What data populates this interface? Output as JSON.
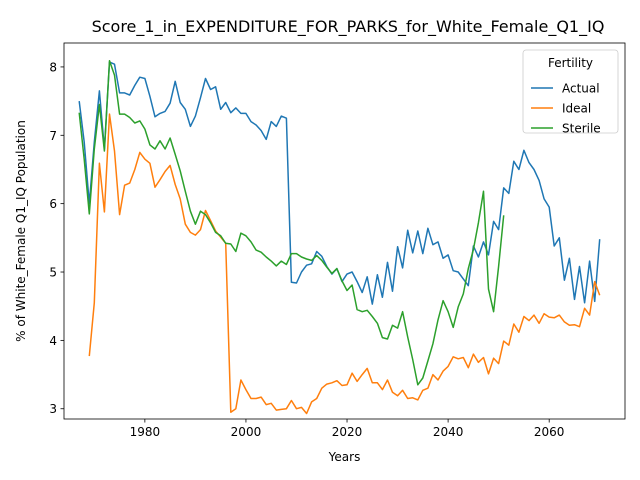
{
  "chart_data": {
    "type": "line",
    "title": "Score_1_in_EXPENDITURE_FOR_PARKS_for_White_Female_Q1_IQ",
    "xlabel": "Years",
    "ylabel": "% of White_Female Q1_IQ Population",
    "xlim": [
      1964,
      2075
    ],
    "ylim": [
      2.85,
      8.35
    ],
    "xticks": [
      1980,
      2000,
      2020,
      2040,
      2060
    ],
    "yticks": [
      3,
      4,
      5,
      6,
      7,
      8
    ],
    "grid": false,
    "legend": {
      "title": "Fertility",
      "position": "top-right"
    },
    "series": [
      {
        "name": "Actual",
        "color": "#1f77b4",
        "points": [
          [
            1967,
            7.5
          ],
          [
            1968,
            6.9
          ],
          [
            1969,
            6.0
          ],
          [
            1970,
            6.9
          ],
          [
            1971,
            7.65
          ],
          [
            1972,
            6.8
          ],
          [
            1973,
            8.07
          ],
          [
            1974,
            8.04
          ],
          [
            1975,
            7.62
          ],
          [
            1976,
            7.62
          ],
          [
            1977,
            7.59
          ],
          [
            1978,
            7.73
          ],
          [
            1979,
            7.85
          ],
          [
            1980,
            7.83
          ],
          [
            1981,
            7.57
          ],
          [
            1982,
            7.27
          ],
          [
            1983,
            7.32
          ],
          [
            1984,
            7.35
          ],
          [
            1985,
            7.47
          ],
          [
            1986,
            7.79
          ],
          [
            1987,
            7.48
          ],
          [
            1988,
            7.38
          ],
          [
            1989,
            7.13
          ],
          [
            1990,
            7.28
          ],
          [
            1991,
            7.55
          ],
          [
            1992,
            7.83
          ],
          [
            1993,
            7.67
          ],
          [
            1994,
            7.71
          ],
          [
            1995,
            7.38
          ],
          [
            1996,
            7.48
          ],
          [
            1997,
            7.33
          ],
          [
            1998,
            7.4
          ],
          [
            1999,
            7.32
          ],
          [
            2000,
            7.32
          ],
          [
            2001,
            7.2
          ],
          [
            2002,
            7.15
          ],
          [
            2003,
            7.07
          ],
          [
            2004,
            6.94
          ],
          [
            2005,
            7.2
          ],
          [
            2006,
            7.13
          ],
          [
            2007,
            7.28
          ],
          [
            2008,
            7.25
          ],
          [
            2009,
            4.85
          ],
          [
            2010,
            4.84
          ],
          [
            2011,
            5.0
          ],
          [
            2012,
            5.1
          ],
          [
            2013,
            5.12
          ],
          [
            2014,
            5.3
          ],
          [
            2015,
            5.23
          ],
          [
            2016,
            5.08
          ],
          [
            2017,
            4.97
          ],
          [
            2018,
            5.05
          ],
          [
            2019,
            4.86
          ],
          [
            2020,
            4.97
          ],
          [
            2021,
            5.0
          ],
          [
            2022,
            4.86
          ],
          [
            2023,
            4.7
          ],
          [
            2024,
            4.93
          ],
          [
            2025,
            4.53
          ],
          [
            2026,
            4.96
          ],
          [
            2027,
            4.63
          ],
          [
            2028,
            5.14
          ],
          [
            2029,
            4.72
          ],
          [
            2030,
            5.37
          ],
          [
            2031,
            5.06
          ],
          [
            2032,
            5.61
          ],
          [
            2033,
            5.28
          ],
          [
            2034,
            5.6
          ],
          [
            2035,
            5.27
          ],
          [
            2036,
            5.64
          ],
          [
            2037,
            5.4
          ],
          [
            2038,
            5.44
          ],
          [
            2039,
            5.2
          ],
          [
            2040,
            5.25
          ],
          [
            2041,
            5.02
          ],
          [
            2042,
            5.0
          ],
          [
            2043,
            4.9
          ],
          [
            2044,
            4.8
          ],
          [
            2045,
            5.38
          ],
          [
            2046,
            5.22
          ],
          [
            2047,
            5.44
          ],
          [
            2048,
            5.25
          ],
          [
            2049,
            5.74
          ],
          [
            2050,
            5.62
          ],
          [
            2051,
            6.23
          ],
          [
            2052,
            6.15
          ],
          [
            2053,
            6.62
          ],
          [
            2054,
            6.5
          ],
          [
            2055,
            6.78
          ],
          [
            2056,
            6.6
          ],
          [
            2057,
            6.5
          ],
          [
            2058,
            6.34
          ],
          [
            2059,
            6.07
          ],
          [
            2060,
            5.95
          ],
          [
            2061,
            5.38
          ],
          [
            2062,
            5.5
          ],
          [
            2063,
            4.88
          ],
          [
            2064,
            5.2
          ],
          [
            2065,
            4.6
          ],
          [
            2066,
            5.08
          ],
          [
            2067,
            4.55
          ],
          [
            2068,
            5.16
          ],
          [
            2069,
            4.57
          ],
          [
            2070,
            5.48
          ]
        ]
      },
      {
        "name": "Ideal",
        "color": "#ff7f0e",
        "points": [
          [
            1969,
            3.77
          ],
          [
            1970,
            4.55
          ],
          [
            1971,
            6.59
          ],
          [
            1972,
            5.88
          ],
          [
            1973,
            7.31
          ],
          [
            1974,
            6.77
          ],
          [
            1975,
            5.84
          ],
          [
            1976,
            6.27
          ],
          [
            1977,
            6.3
          ],
          [
            1978,
            6.5
          ],
          [
            1979,
            6.75
          ],
          [
            1980,
            6.65
          ],
          [
            1981,
            6.59
          ],
          [
            1982,
            6.24
          ],
          [
            1983,
            6.35
          ],
          [
            1984,
            6.47
          ],
          [
            1985,
            6.56
          ],
          [
            1986,
            6.28
          ],
          [
            1987,
            6.07
          ],
          [
            1988,
            5.7
          ],
          [
            1989,
            5.58
          ],
          [
            1990,
            5.54
          ],
          [
            1991,
            5.62
          ],
          [
            1992,
            5.9
          ],
          [
            1993,
            5.75
          ],
          [
            1994,
            5.6
          ],
          [
            1995,
            5.51
          ],
          [
            1996,
            5.42
          ],
          [
            1997,
            2.95
          ],
          [
            1998,
            3.0
          ],
          [
            1999,
            3.42
          ],
          [
            2000,
            3.28
          ],
          [
            2001,
            3.15
          ],
          [
            2002,
            3.15
          ],
          [
            2003,
            3.17
          ],
          [
            2004,
            3.06
          ],
          [
            2005,
            3.08
          ],
          [
            2006,
            2.98
          ],
          [
            2007,
            2.99
          ],
          [
            2008,
            3.0
          ],
          [
            2009,
            3.12
          ],
          [
            2010,
            3.0
          ],
          [
            2011,
            3.02
          ],
          [
            2012,
            2.93
          ],
          [
            2013,
            3.1
          ],
          [
            2014,
            3.15
          ],
          [
            2015,
            3.3
          ],
          [
            2016,
            3.36
          ],
          [
            2017,
            3.38
          ],
          [
            2018,
            3.41
          ],
          [
            2019,
            3.34
          ],
          [
            2020,
            3.35
          ],
          [
            2021,
            3.52
          ],
          [
            2022,
            3.4
          ],
          [
            2023,
            3.5
          ],
          [
            2024,
            3.59
          ],
          [
            2025,
            3.38
          ],
          [
            2026,
            3.38
          ],
          [
            2027,
            3.28
          ],
          [
            2028,
            3.42
          ],
          [
            2029,
            3.24
          ],
          [
            2030,
            3.19
          ],
          [
            2031,
            3.27
          ],
          [
            2032,
            3.15
          ],
          [
            2033,
            3.16
          ],
          [
            2034,
            3.13
          ],
          [
            2035,
            3.27
          ],
          [
            2036,
            3.3
          ],
          [
            2037,
            3.5
          ],
          [
            2038,
            3.42
          ],
          [
            2039,
            3.55
          ],
          [
            2040,
            3.62
          ],
          [
            2041,
            3.76
          ],
          [
            2042,
            3.73
          ],
          [
            2043,
            3.75
          ],
          [
            2044,
            3.6
          ],
          [
            2045,
            3.8
          ],
          [
            2046,
            3.68
          ],
          [
            2047,
            3.75
          ],
          [
            2048,
            3.51
          ],
          [
            2049,
            3.74
          ],
          [
            2050,
            3.66
          ],
          [
            2051,
            3.99
          ],
          [
            2052,
            3.93
          ],
          [
            2053,
            4.24
          ],
          [
            2054,
            4.12
          ],
          [
            2055,
            4.35
          ],
          [
            2056,
            4.29
          ],
          [
            2057,
            4.37
          ],
          [
            2058,
            4.25
          ],
          [
            2059,
            4.39
          ],
          [
            2060,
            4.34
          ],
          [
            2061,
            4.33
          ],
          [
            2062,
            4.37
          ],
          [
            2063,
            4.27
          ],
          [
            2064,
            4.22
          ],
          [
            2065,
            4.23
          ],
          [
            2066,
            4.2
          ],
          [
            2067,
            4.47
          ],
          [
            2068,
            4.37
          ],
          [
            2069,
            4.86
          ],
          [
            2070,
            4.66
          ]
        ]
      },
      {
        "name": "Sterile",
        "color": "#2ca02c",
        "points": [
          [
            1967,
            7.33
          ],
          [
            1968,
            6.65
          ],
          [
            1969,
            5.85
          ],
          [
            1970,
            6.8
          ],
          [
            1971,
            7.45
          ],
          [
            1972,
            6.77
          ],
          [
            1973,
            8.09
          ],
          [
            1974,
            7.88
          ],
          [
            1975,
            7.31
          ],
          [
            1976,
            7.31
          ],
          [
            1977,
            7.26
          ],
          [
            1978,
            7.18
          ],
          [
            1979,
            7.21
          ],
          [
            1980,
            7.09
          ],
          [
            1981,
            6.86
          ],
          [
            1982,
            6.8
          ],
          [
            1983,
            6.92
          ],
          [
            1984,
            6.8
          ],
          [
            1985,
            6.96
          ],
          [
            1986,
            6.72
          ],
          [
            1987,
            6.48
          ],
          [
            1988,
            6.18
          ],
          [
            1989,
            5.89
          ],
          [
            1990,
            5.7
          ],
          [
            1991,
            5.89
          ],
          [
            1992,
            5.84
          ],
          [
            1993,
            5.72
          ],
          [
            1994,
            5.58
          ],
          [
            1995,
            5.53
          ],
          [
            1996,
            5.42
          ],
          [
            1997,
            5.41
          ],
          [
            1998,
            5.3
          ],
          [
            1999,
            5.57
          ],
          [
            2000,
            5.53
          ],
          [
            2001,
            5.44
          ],
          [
            2002,
            5.32
          ],
          [
            2003,
            5.29
          ],
          [
            2004,
            5.22
          ],
          [
            2005,
            5.16
          ],
          [
            2006,
            5.09
          ],
          [
            2007,
            5.16
          ],
          [
            2008,
            5.11
          ],
          [
            2009,
            5.27
          ],
          [
            2010,
            5.27
          ],
          [
            2011,
            5.22
          ],
          [
            2012,
            5.19
          ],
          [
            2013,
            5.17
          ],
          [
            2014,
            5.24
          ],
          [
            2015,
            5.17
          ],
          [
            2016,
            5.07
          ],
          [
            2017,
            4.98
          ],
          [
            2018,
            5.05
          ],
          [
            2019,
            4.87
          ],
          [
            2020,
            4.73
          ],
          [
            2021,
            4.81
          ],
          [
            2022,
            4.45
          ],
          [
            2023,
            4.42
          ],
          [
            2024,
            4.44
          ],
          [
            2025,
            4.35
          ],
          [
            2026,
            4.25
          ],
          [
            2027,
            4.04
          ],
          [
            2028,
            4.02
          ],
          [
            2029,
            4.22
          ],
          [
            2030,
            4.18
          ],
          [
            2031,
            4.42
          ],
          [
            2032,
            4.05
          ],
          [
            2033,
            3.72
          ],
          [
            2034,
            3.35
          ],
          [
            2035,
            3.45
          ],
          [
            2036,
            3.7
          ],
          [
            2037,
            3.95
          ],
          [
            2038,
            4.3
          ],
          [
            2039,
            4.58
          ],
          [
            2040,
            4.42
          ],
          [
            2041,
            4.19
          ],
          [
            2042,
            4.49
          ],
          [
            2043,
            4.68
          ],
          [
            2044,
            5.05
          ],
          [
            2045,
            5.33
          ],
          [
            2046,
            5.72
          ],
          [
            2047,
            6.18
          ],
          [
            2048,
            4.75
          ],
          [
            2049,
            4.42
          ],
          [
            2050,
            5.08
          ],
          [
            2051,
            5.83
          ]
        ]
      }
    ]
  }
}
